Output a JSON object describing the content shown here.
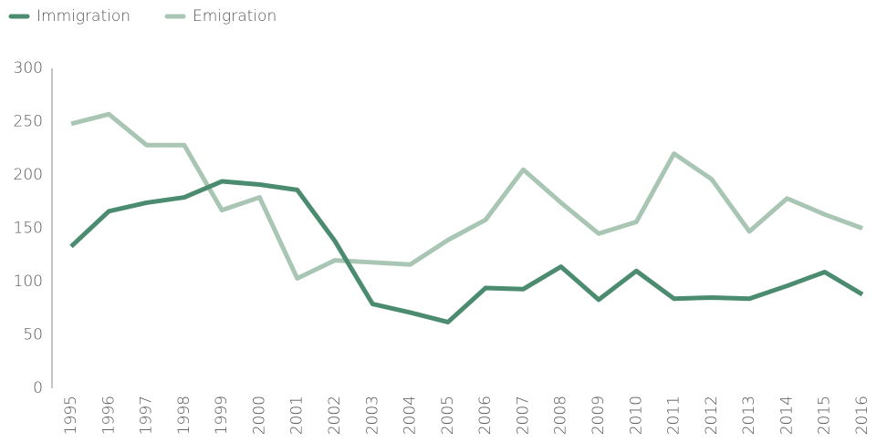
{
  "chart_data": {
    "type": "line",
    "categories": [
      "1995",
      "1996",
      "1997",
      "1998",
      "1999",
      "2000",
      "2001",
      "2002",
      "2003",
      "2004",
      "2005",
      "2006",
      "2007",
      "2008",
      "2009",
      "2010",
      "2011",
      "2012",
      "2013",
      "2014",
      "2015",
      "2016"
    ],
    "series": [
      {
        "name": "Immigration",
        "color": "#4b8b6f",
        "values": [
          133,
          166,
          174,
          179,
          194,
          191,
          186,
          138,
          79,
          71,
          62,
          94,
          93,
          114,
          83,
          110,
          84,
          85,
          84,
          96,
          109,
          88
        ]
      },
      {
        "name": "Emigration",
        "color": "#a9c6b4",
        "values": [
          248,
          257,
          228,
          228,
          167,
          179,
          103,
          120,
          118,
          116,
          139,
          158,
          205,
          174,
          145,
          156,
          220,
          196,
          147,
          178,
          163,
          150
        ]
      }
    ],
    "ylim": [
      0,
      300
    ],
    "yticks": [
      0,
      50,
      100,
      150,
      200,
      250,
      300
    ],
    "grid": false,
    "legend": "top-left"
  }
}
